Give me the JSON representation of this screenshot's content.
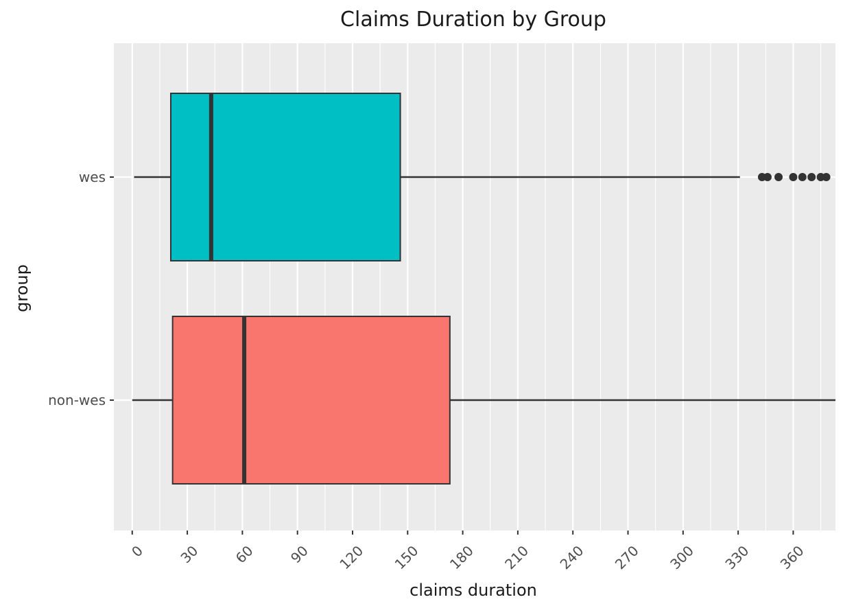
{
  "chart_data": {
    "type": "boxplot",
    "orientation": "horizontal",
    "title": "Claims Duration by Group",
    "xlabel": "claims duration",
    "ylabel": "group",
    "xlim": [
      -10,
      383
    ],
    "x_ticks": [
      0,
      30,
      60,
      90,
      120,
      150,
      180,
      210,
      240,
      270,
      300,
      330,
      360
    ],
    "x_tick_labels": [
      "0",
      "30",
      "60",
      "90",
      "120",
      "150",
      "180",
      "210",
      "240",
      "270",
      "300",
      "330",
      "360"
    ],
    "categories": [
      "wes",
      "non-wes"
    ],
    "grid": true,
    "legend": "none",
    "groups": [
      {
        "name": "wes",
        "color": "#00BFC4",
        "whisker_low": 1,
        "q1": 21,
        "median": 43,
        "q3": 146,
        "whisker_high": 331,
        "outliers": [
          343,
          346,
          352,
          360,
          365,
          370,
          375,
          378
        ]
      },
      {
        "name": "non-wes",
        "color": "#F8766D",
        "whisker_low": 0,
        "q1": 22,
        "median": 61,
        "q3": 173,
        "whisker_high": 385,
        "outliers": []
      }
    ]
  }
}
